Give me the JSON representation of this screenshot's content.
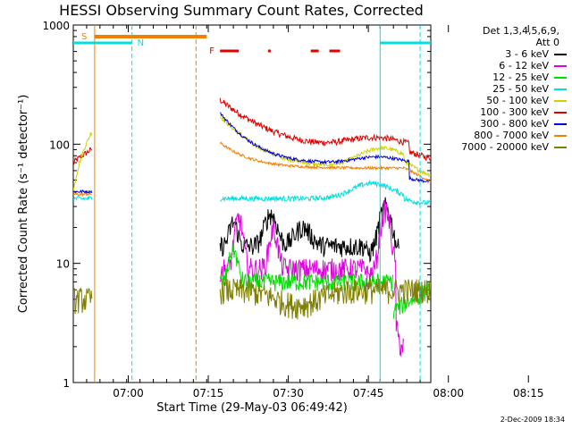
{
  "chart_data": {
    "type": "line",
    "title": "HESSI Observing Summary Count Rates, Corrected",
    "xlabel": "Start Time (29-May-03 06:49:42)",
    "ylabel": "Corrected Count Rate (s⁻¹ detector⁻¹)",
    "y_scale": "log",
    "ylim": [
      1,
      1000
    ],
    "xlim_minutes": [
      0,
      67
    ],
    "x_ticks": [
      {
        "minutes": 10.3,
        "label": "07:00"
      },
      {
        "minutes": 25.3,
        "label": "07:15"
      },
      {
        "minutes": 40.3,
        "label": "07:30"
      },
      {
        "minutes": 55.3,
        "label": "07:45"
      },
      {
        "minutes": 70.3,
        "label": "08:00"
      },
      {
        "minutes": 85.3,
        "label": "08:15"
      }
    ],
    "y_ticks": [
      {
        "value": 1,
        "label": "1"
      },
      {
        "value": 10,
        "label": "10"
      },
      {
        "value": 100,
        "label": "100"
      },
      {
        "value": 1000,
        "label": "1000"
      }
    ],
    "legend_header": [
      "Det 1,3,4,5,6,9,",
      "Att 0"
    ],
    "legend_position": "right",
    "series": [
      {
        "name": "3 - 6 keV",
        "color": "#000000"
      },
      {
        "name": "6 - 12 keV",
        "color": "#e000e0"
      },
      {
        "name": "12 - 25 keV",
        "color": "#00e000"
      },
      {
        "name": "25 - 50 keV",
        "color": "#00e0e0"
      },
      {
        "name": "50 - 100 keV",
        "color": "#d0d000"
      },
      {
        "name": "100 - 300 keV",
        "color": "#e00000"
      },
      {
        "name": "300 - 800 keV",
        "color": "#0000e0"
      },
      {
        "name": "800 - 7000 keV",
        "color": "#f08000"
      },
      {
        "name": "7000 - 20000 keV",
        "color": "#808000"
      }
    ],
    "annotations": {
      "saa_label": "S",
      "night_label": "N",
      "flare_label": "F"
    },
    "timestamp": "2-Dec-2009 18:34"
  }
}
